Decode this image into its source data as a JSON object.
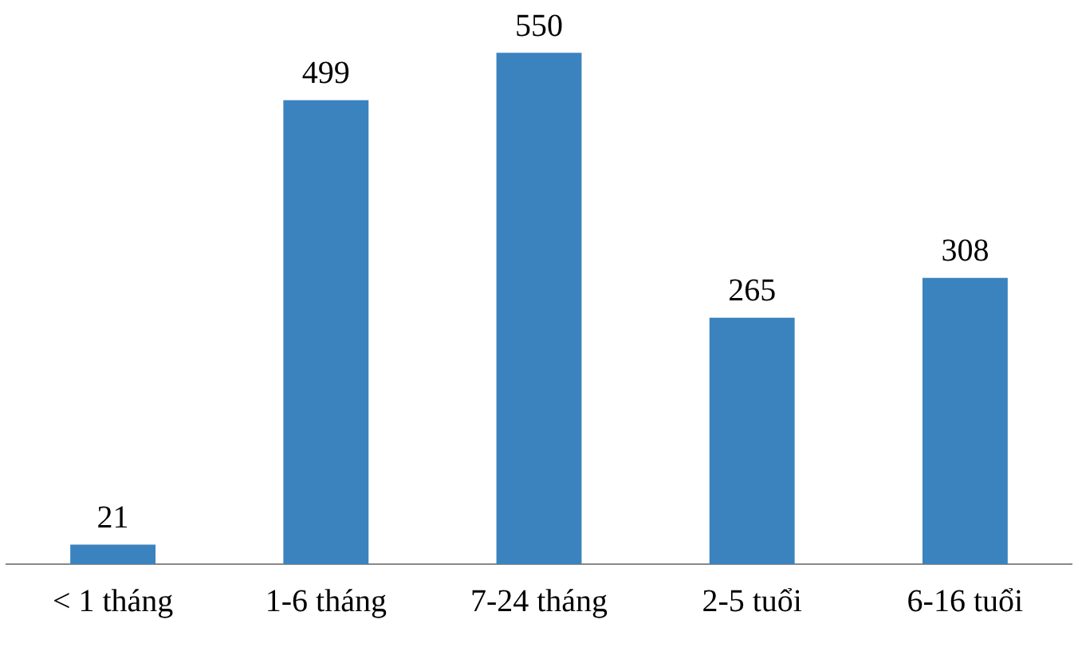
{
  "chart_data": {
    "type": "bar",
    "categories": [
      "< 1 tháng",
      "1-6 tháng",
      "7-24 tháng",
      "2-5 tuổi",
      "6-16 tuổi"
    ],
    "values": [
      21,
      499,
      550,
      265,
      308
    ],
    "color": "#3a83bf",
    "data_labels": true
  }
}
